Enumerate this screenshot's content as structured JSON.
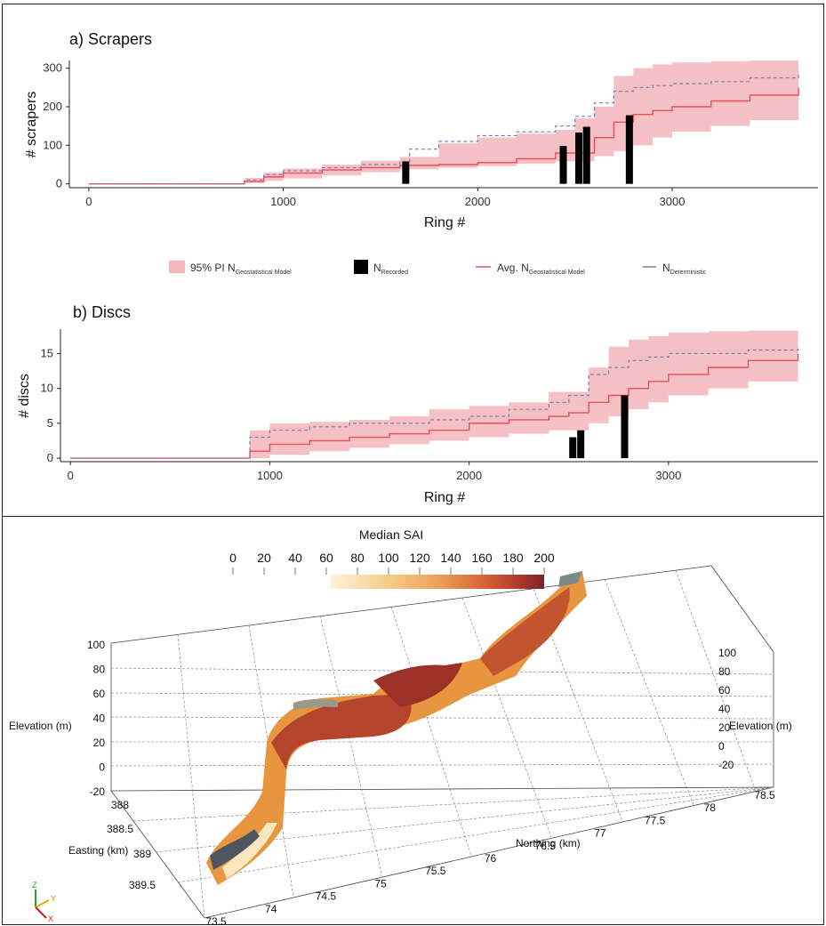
{
  "panels": {
    "scrapers": {
      "title": "a) Scrapers",
      "xlabel": "Ring #",
      "ylabel": "# scrapers",
      "xticks": [
        "0",
        "1000",
        "2000",
        "3000"
      ],
      "yticks": [
        "0",
        "100",
        "200",
        "300"
      ]
    },
    "discs": {
      "title": "b) Discs",
      "xlabel": "Ring #",
      "ylabel": "# discs",
      "xticks": [
        "0",
        "1000",
        "2000",
        "3000"
      ],
      "yticks": [
        "0",
        "5",
        "10",
        "15"
      ]
    }
  },
  "legend": {
    "pi_main": "95% PI N",
    "pi_sub": "Geostatistical Model",
    "rec_main": "N",
    "rec_sub": "Recorded",
    "avg_main": "Avg. N",
    "avg_sub": "Geostatistical Model",
    "det_main": "N",
    "det_sub": "Deterministic"
  },
  "colors": {
    "band": "#f4b6bb",
    "avg": "#e8505b",
    "det": "#7a7fb0",
    "bar": "#000000"
  },
  "chart_data": [
    {
      "type": "area",
      "title": "a) Scrapers",
      "xlabel": "Ring #",
      "ylabel": "# scrapers",
      "xlim": [
        -100,
        3750
      ],
      "ylim": [
        -10,
        320
      ],
      "series": [
        {
          "name": "95% PI N Geostatistical Model (lower)",
          "x": [
            0,
            700,
            800,
            900,
            1000,
            1200,
            1400,
            1600,
            1800,
            2000,
            2200,
            2400,
            2600,
            2700,
            2800,
            2900,
            3000,
            3200,
            3400,
            3650
          ],
          "values": [
            0,
            0,
            2,
            8,
            14,
            22,
            30,
            38,
            42,
            46,
            52,
            58,
            72,
            85,
            100,
            120,
            135,
            150,
            165,
            180
          ]
        },
        {
          "name": "95% PI N Geostatistical Model (upper)",
          "x": [
            0,
            700,
            800,
            900,
            1000,
            1200,
            1400,
            1600,
            1800,
            2000,
            2200,
            2400,
            2500,
            2600,
            2700,
            2800,
            2900,
            3000,
            3200,
            3400,
            3650
          ],
          "values": [
            0,
            0,
            15,
            30,
            40,
            50,
            60,
            70,
            105,
            120,
            130,
            140,
            170,
            200,
            280,
            300,
            310,
            315,
            318,
            320,
            322
          ]
        },
        {
          "name": "Avg. N Geostatistical Model",
          "x": [
            0,
            700,
            800,
            900,
            1000,
            1200,
            1400,
            1600,
            1800,
            2000,
            2200,
            2400,
            2600,
            2700,
            2800,
            2900,
            3000,
            3200,
            3400,
            3650
          ],
          "values": [
            0,
            0,
            6,
            18,
            28,
            36,
            42,
            48,
            50,
            55,
            65,
            80,
            120,
            160,
            180,
            190,
            200,
            215,
            230,
            250
          ]
        },
        {
          "name": "N Deterministic",
          "x": [
            0,
            700,
            800,
            900,
            1000,
            1200,
            1400,
            1600,
            1650,
            1800,
            2000,
            2200,
            2400,
            2500,
            2600,
            2700,
            2800,
            2900,
            3000,
            3200,
            3400,
            3650
          ],
          "values": [
            0,
            0,
            10,
            24,
            34,
            42,
            50,
            58,
            90,
            110,
            125,
            135,
            150,
            175,
            210,
            240,
            250,
            255,
            260,
            265,
            275,
            285
          ]
        }
      ],
      "bars": {
        "name": "N Recorded",
        "x": [
          1630,
          2440,
          2520,
          2560,
          2780
        ],
        "values": [
          58,
          98,
          133,
          148,
          178
        ]
      }
    },
    {
      "type": "area",
      "title": "b) Discs",
      "xlabel": "Ring #",
      "ylabel": "# discs",
      "xlim": [
        -50,
        3750
      ],
      "ylim": [
        -0.5,
        18.5
      ],
      "series": [
        {
          "name": "95% PI N Geostatistical Model (lower)",
          "x": [
            0,
            780,
            900,
            1000,
            1200,
            1400,
            1600,
            1800,
            2000,
            2200,
            2400,
            2600,
            2700,
            2800,
            2900,
            3000,
            3200,
            3400,
            3650
          ],
          "values": [
            0,
            0,
            0,
            0.5,
            1,
            1.5,
            2,
            2.5,
            3,
            3.5,
            4,
            5,
            6,
            7,
            8,
            9,
            10,
            11,
            12
          ]
        },
        {
          "name": "95% PI N Geostatistical Model (upper)",
          "x": [
            0,
            780,
            900,
            1000,
            1200,
            1400,
            1600,
            1800,
            2000,
            2200,
            2400,
            2600,
            2700,
            2800,
            2900,
            3000,
            3200,
            3400,
            3650
          ],
          "values": [
            0,
            0,
            4,
            5,
            5.2,
            5.5,
            6,
            7,
            7.5,
            8,
            9.5,
            13,
            16,
            17,
            17.5,
            18,
            18.2,
            18.3,
            18.4
          ]
        },
        {
          "name": "Avg. N Geostatistical Model",
          "x": [
            0,
            780,
            900,
            1000,
            1200,
            1400,
            1600,
            1800,
            2000,
            2200,
            2400,
            2500,
            2600,
            2700,
            2800,
            2900,
            3000,
            3200,
            3400,
            3650
          ],
          "values": [
            0,
            0,
            1,
            2,
            2.5,
            3,
            3.5,
            4,
            5,
            5.5,
            6,
            6.5,
            8,
            9,
            10,
            11,
            12,
            13,
            14,
            15
          ]
        },
        {
          "name": "N Deterministic",
          "x": [
            0,
            780,
            900,
            1000,
            1200,
            1400,
            1600,
            1800,
            2000,
            2200,
            2400,
            2500,
            2600,
            2700,
            2800,
            2900,
            3000,
            3200,
            3400,
            3650
          ],
          "values": [
            0,
            0,
            3,
            4,
            4.5,
            5,
            5,
            5.5,
            6,
            7,
            8,
            9,
            12,
            13,
            14,
            14.5,
            15,
            15,
            15.5,
            16
          ]
        }
      ],
      "bars": {
        "name": "N Recorded",
        "x": [
          2520,
          2560,
          2780
        ],
        "values": [
          3,
          4,
          9
        ]
      }
    }
  ],
  "scene3d": {
    "colorbar_title": "Median SAI",
    "colorbar_ticks": [
      "0",
      "20",
      "40",
      "60",
      "80",
      "100",
      "120",
      "140",
      "160",
      "180",
      "200"
    ],
    "colorbar_colors": [
      "#fdf3dc",
      "#f7cf8a",
      "#eda25a",
      "#d9683a",
      "#b8412d",
      "#7f2027"
    ],
    "elevation_left": [
      "100",
      "80",
      "60",
      "40",
      "20",
      "0",
      "-20"
    ],
    "elevation_right": [
      "100",
      "80",
      "60",
      "40",
      "20",
      "0",
      "-20"
    ],
    "elevation_label": "Elevation (m)",
    "easting_ticks": [
      "388",
      "388.5",
      "389",
      "389.5"
    ],
    "easting_label": "Easting (km)",
    "northing_ticks": [
      "73.5",
      "74",
      "74.5",
      "75",
      "75.5",
      "76",
      "76.5",
      "77",
      "77.5",
      "78",
      "78.5"
    ],
    "northing_label": "Northing (km)",
    "axes_widget": {
      "z": "Z",
      "y": "Y",
      "x": "X"
    }
  }
}
